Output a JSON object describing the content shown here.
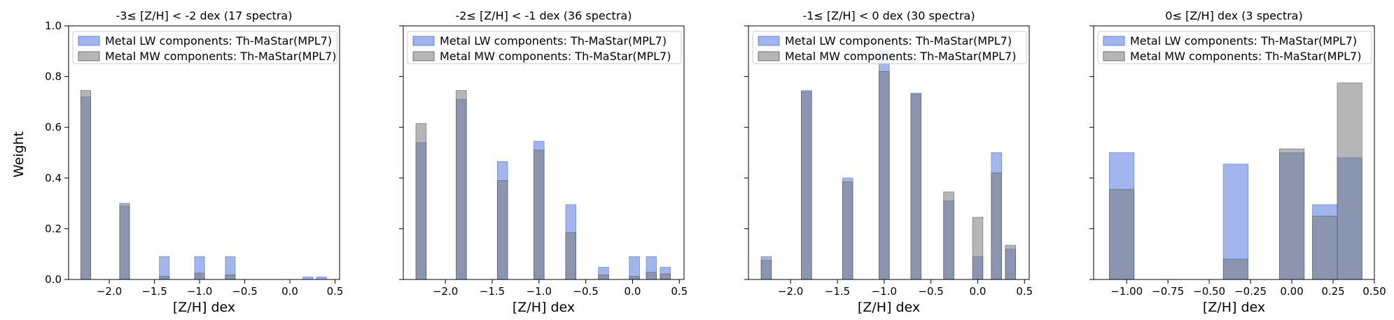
{
  "colors": {
    "lw": "#6f8fe6",
    "mw": "#7a7a7a",
    "overlap": "#6c7aa6"
  },
  "shared": {
    "ylabel": "Weight",
    "xlabel": "[Z/H] dex"
  },
  "chart_data": [
    {
      "type": "bar",
      "title": "-3≤  [Z/H] < -2 dex (17 spectra)",
      "xlabel": "[Z/H] dex",
      "ylabel": "Weight",
      "xlim": [
        -2.45,
        0.55
      ],
      "ylim": [
        0,
        1.0
      ],
      "xticks": [
        -2.0,
        -1.5,
        -1.0,
        -0.5,
        0.0,
        0.5
      ],
      "xtick_labels": [
        "−2.0",
        "−1.5",
        "−1.0",
        "−0.5",
        "0.0",
        "0.5"
      ],
      "yticks": [
        0.0,
        0.2,
        0.4,
        0.6,
        0.8,
        1.0
      ],
      "ytick_labels": [
        "0.0",
        "0.2",
        "0.4",
        "0.6",
        "0.8",
        "1.0"
      ],
      "legend": [
        "Metal LW components: Th-MaStar(MPL7)",
        "Metal MW components: Th-MaStar(MPL7)"
      ],
      "legend_loc": "upper right",
      "x": [
        -2.26,
        -1.83,
        -1.39,
        -1.0,
        -0.66,
        0.2,
        0.35
      ],
      "bar_width": 0.11,
      "series": [
        {
          "name": "Metal LW components: Th-MaStar(MPL7)",
          "values": [
            0.72,
            0.29,
            0.09,
            0.09,
            0.09,
            0.01,
            0.01
          ]
        },
        {
          "name": "Metal MW components: Th-MaStar(MPL7)",
          "values": [
            0.745,
            0.3,
            0.012,
            0.025,
            0.018,
            0.0,
            0.0
          ]
        }
      ]
    },
    {
      "type": "bar",
      "title": "-2≤  [Z/H] < -1 dex (36 spectra)",
      "xlabel": "[Z/H] dex",
      "ylabel": "",
      "xlim": [
        -2.45,
        0.55
      ],
      "ylim": [
        0,
        1.0
      ],
      "xticks": [
        -2.0,
        -1.5,
        -1.0,
        -0.5,
        0.0,
        0.5
      ],
      "xtick_labels": [
        "−2.0",
        "−1.5",
        "−1.0",
        "−0.5",
        "0.0",
        "0.5"
      ],
      "yticks": [
        0.0,
        0.2,
        0.4,
        0.6,
        0.8,
        1.0
      ],
      "ytick_labels": [],
      "legend": [
        "Metal LW components: Th-MaStar(MPL7)",
        "Metal MW components: Th-MaStar(MPL7)"
      ],
      "legend_loc": "upper right",
      "x": [
        -2.26,
        -1.83,
        -1.39,
        -1.0,
        -0.66,
        -0.31,
        0.02,
        0.2,
        0.35
      ],
      "bar_width": 0.11,
      "series": [
        {
          "name": "Metal LW components: Th-MaStar(MPL7)",
          "values": [
            0.54,
            0.71,
            0.465,
            0.545,
            0.295,
            0.048,
            0.09,
            0.09,
            0.048
          ]
        },
        {
          "name": "Metal MW components: Th-MaStar(MPL7)",
          "values": [
            0.615,
            0.745,
            0.39,
            0.51,
            0.185,
            0.018,
            0.012,
            0.028,
            0.022
          ]
        }
      ]
    },
    {
      "type": "bar",
      "title": "-1≤  [Z/H] < 0 dex (30 spectra)",
      "xlabel": "[Z/H] dex",
      "ylabel": "",
      "xlim": [
        -2.45,
        0.55
      ],
      "ylim": [
        0,
        1.0
      ],
      "xticks": [
        -2.0,
        -1.5,
        -1.0,
        -0.5,
        0.0,
        0.5
      ],
      "xtick_labels": [
        "−2.0",
        "−1.5",
        "−1.0",
        "−0.5",
        "0.0",
        "0.5"
      ],
      "yticks": [
        0.0,
        0.2,
        0.4,
        0.6,
        0.8,
        1.0
      ],
      "ytick_labels": [],
      "legend": [
        "Metal LW components: Th-MaStar(MPL7)",
        "Metal MW components: Th-MaStar(MPL7)"
      ],
      "legend_loc": "upper right",
      "x": [
        -2.26,
        -1.83,
        -1.39,
        -1.0,
        -0.66,
        -0.31,
        0.0,
        0.2,
        0.35
      ],
      "bar_width": 0.11,
      "series": [
        {
          "name": "Metal LW components: Th-MaStar(MPL7)",
          "values": [
            0.09,
            0.745,
            0.4,
            0.9,
            0.735,
            0.31,
            0.09,
            0.5,
            0.12
          ]
        },
        {
          "name": "Metal MW components: Th-MaStar(MPL7)",
          "values": [
            0.075,
            0.74,
            0.385,
            0.82,
            0.73,
            0.345,
            0.245,
            0.42,
            0.135
          ]
        }
      ]
    },
    {
      "type": "bar",
      "title": "0≤  [Z/H] dex (3 spectra)",
      "xlabel": "[Z/H] dex",
      "ylabel": "",
      "xlim": [
        -1.2,
        0.5
      ],
      "ylim": [
        0,
        1.0
      ],
      "xticks": [
        -1.0,
        -0.75,
        -0.5,
        -0.25,
        0.0,
        0.25,
        0.5
      ],
      "xtick_labels": [
        "−1.00",
        "−0.75",
        "−0.50",
        "−0.25",
        "0.00",
        "0.25",
        "0.50"
      ],
      "yticks": [
        0.0,
        0.2,
        0.4,
        0.6,
        0.8,
        1.0
      ],
      "ytick_labels": [],
      "legend": [
        "Metal LW components: Th-MaStar(MPL7)",
        "Metal MW components: Th-MaStar(MPL7)"
      ],
      "legend_loc": "upper right",
      "x": [
        -1.03,
        -0.34,
        0.0,
        0.2,
        0.35
      ],
      "bar_width": 0.15,
      "series": [
        {
          "name": "Metal LW components: Th-MaStar(MPL7)",
          "values": [
            0.5,
            0.455,
            0.5,
            0.295,
            0.48
          ]
        },
        {
          "name": "Metal MW components: Th-MaStar(MPL7)",
          "values": [
            0.355,
            0.08,
            0.515,
            0.25,
            0.775
          ]
        }
      ]
    }
  ]
}
